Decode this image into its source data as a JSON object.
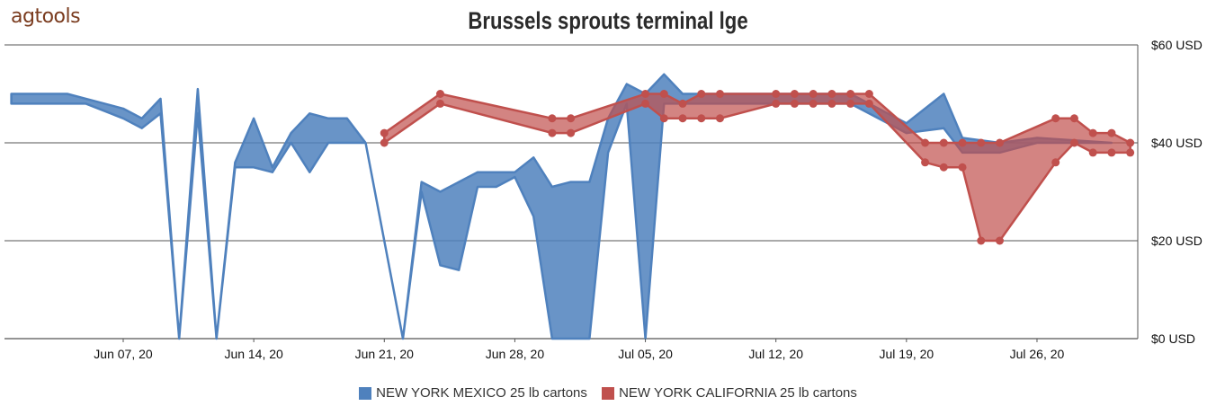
{
  "brand": {
    "logo_text": "agtools"
  },
  "colors": {
    "mexico": "#4f81bd",
    "california": "#c0504d"
  },
  "chart_data": {
    "type": "area",
    "title": "Brussels sprouts terminal   lge",
    "xlabel": "",
    "ylabel": "",
    "x_ticks": [
      "Jun 07, 20",
      "Jun 14, 20",
      "Jun 21, 20",
      "Jun 28, 20",
      "Jul 05, 20",
      "Jul 12, 20",
      "Jul 19, 20",
      "Jul 26, 20"
    ],
    "x_range": [
      "2020-06-01",
      "2020-07-31"
    ],
    "ylim": [
      0,
      60
    ],
    "y_ticks": [
      "$0 USD",
      "$20 USD",
      "$40 USD",
      "$60 USD"
    ],
    "y_tick_values": [
      0,
      20,
      40,
      60
    ],
    "grid": true,
    "legend_position": "bottom",
    "series": [
      {
        "name": "NEW YORK MEXICO  25 lb cartons",
        "color": "#4f81bd",
        "points": [
          [
            "2020-06-01",
            48,
            50
          ],
          [
            "2020-06-04",
            48,
            50
          ],
          [
            "2020-06-05",
            48,
            49
          ],
          [
            "2020-06-07",
            45,
            47
          ],
          [
            "2020-06-08",
            43,
            45
          ],
          [
            "2020-06-09",
            46,
            49
          ],
          [
            "2020-06-10",
            0,
            0
          ],
          [
            "2020-06-11",
            46,
            51
          ],
          [
            "2020-06-12",
            0,
            0
          ],
          [
            "2020-06-13",
            35,
            36
          ],
          [
            "2020-06-14",
            35,
            45
          ],
          [
            "2020-06-15",
            34,
            35
          ],
          [
            "2020-06-16",
            40,
            42
          ],
          [
            "2020-06-17",
            34,
            46
          ],
          [
            "2020-06-18",
            40,
            45
          ],
          [
            "2020-06-19",
            40,
            45
          ],
          [
            "2020-06-20",
            40,
            40
          ],
          [
            "2020-06-22",
            0,
            0
          ],
          [
            "2020-06-23",
            30,
            32
          ],
          [
            "2020-06-24",
            15,
            30
          ],
          [
            "2020-06-25",
            14,
            32
          ],
          [
            "2020-06-26",
            31,
            34
          ],
          [
            "2020-06-27",
            31,
            34
          ],
          [
            "2020-06-28",
            33,
            34
          ],
          [
            "2020-06-29",
            25,
            37
          ],
          [
            "2020-06-30",
            0,
            31
          ],
          [
            "2020-07-01",
            0,
            32
          ],
          [
            "2020-07-02",
            0,
            32
          ],
          [
            "2020-07-03",
            38,
            45
          ],
          [
            "2020-07-04",
            48,
            52
          ],
          [
            "2020-07-05",
            0,
            50
          ],
          [
            "2020-07-06",
            48,
            54
          ],
          [
            "2020-07-07",
            48,
            50
          ],
          [
            "2020-07-10",
            48,
            50
          ],
          [
            "2020-07-14",
            48,
            50
          ],
          [
            "2020-07-16",
            48,
            50
          ],
          [
            "2020-07-19",
            42,
            44
          ],
          [
            "2020-07-21",
            43,
            50
          ],
          [
            "2020-07-22",
            38,
            41
          ],
          [
            "2020-07-24",
            38,
            40
          ],
          [
            "2020-07-26",
            40,
            41
          ],
          [
            "2020-07-30",
            40,
            40
          ]
        ]
      },
      {
        "name": "NEW YORK CALIFORNIA  25 lb cartons",
        "color": "#c0504d",
        "points": [
          [
            "2020-06-21",
            40,
            42
          ],
          [
            "2020-06-24",
            48,
            50
          ],
          [
            "2020-06-30",
            42,
            45
          ],
          [
            "2020-07-01",
            42,
            45
          ],
          [
            "2020-07-05",
            48,
            50
          ],
          [
            "2020-07-06",
            45,
            50
          ],
          [
            "2020-07-07",
            45,
            48
          ],
          [
            "2020-07-08",
            45,
            50
          ],
          [
            "2020-07-09",
            45,
            50
          ],
          [
            "2020-07-12",
            48,
            50
          ],
          [
            "2020-07-13",
            48,
            50
          ],
          [
            "2020-07-14",
            48,
            50
          ],
          [
            "2020-07-15",
            48,
            50
          ],
          [
            "2020-07-16",
            48,
            50
          ],
          [
            "2020-07-17",
            48,
            50
          ],
          [
            "2020-07-20",
            36,
            40
          ],
          [
            "2020-07-21",
            35,
            40
          ],
          [
            "2020-07-22",
            35,
            40
          ],
          [
            "2020-07-23",
            20,
            40
          ],
          [
            "2020-07-24",
            20,
            40
          ],
          [
            "2020-07-27",
            36,
            45
          ],
          [
            "2020-07-28",
            40,
            45
          ],
          [
            "2020-07-29",
            38,
            42
          ],
          [
            "2020-07-30",
            38,
            42
          ],
          [
            "2020-07-31",
            38,
            40
          ]
        ]
      }
    ]
  }
}
